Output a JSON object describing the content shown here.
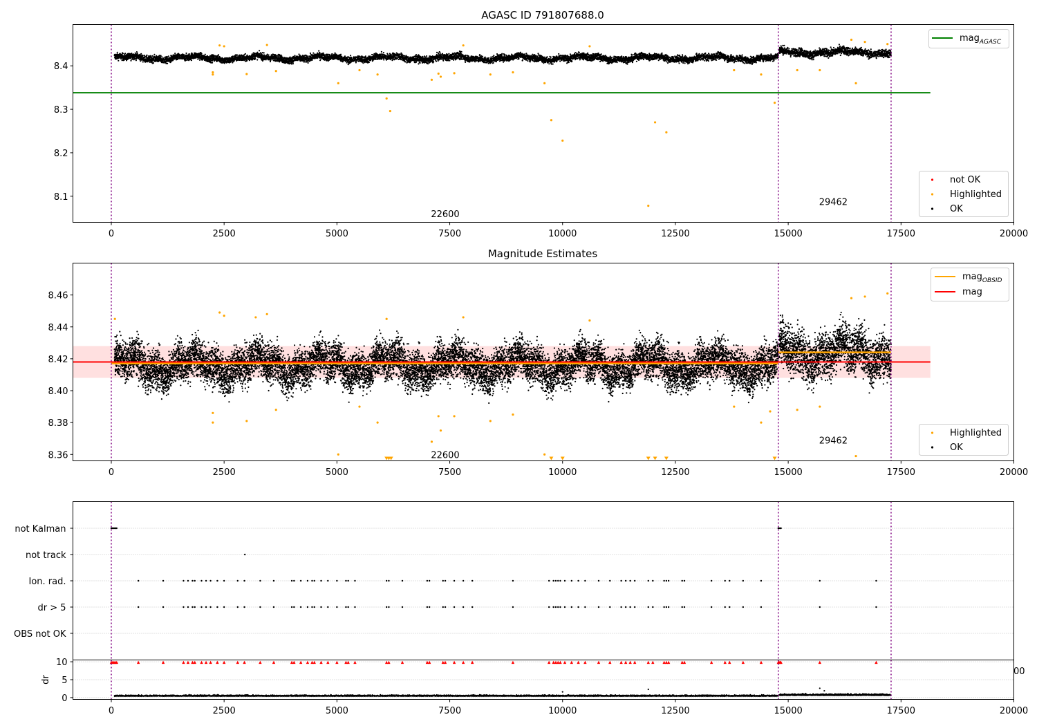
{
  "chart_data": [
    {
      "type": "scatter",
      "title": "AGASC ID 791807688.0",
      "xlim": [
        -850,
        20000
      ],
      "ylim": [
        8.04,
        8.495
      ],
      "x_ticks": [
        0,
        2500,
        5000,
        7500,
        10000,
        12500,
        15000,
        17500,
        20000
      ],
      "y_ticks": [
        8.1,
        8.2,
        8.3,
        8.4
      ],
      "vlines": [
        0,
        14780,
        17280
      ],
      "obsid_labels": [
        {
          "text": "22600",
          "x": 7400,
          "y": 8.06
        },
        {
          "text": "29462",
          "x": 16000,
          "y": 8.088
        }
      ],
      "mag_agasc": 8.338,
      "mag_agasc_range": [
        -850,
        18150
      ],
      "ok_segments": [
        {
          "x": [
            70,
            14780
          ],
          "center": 8.418,
          "spread": 0.011
        },
        {
          "x": [
            14800,
            17280
          ],
          "center": 8.431,
          "spread": 0.013
        }
      ],
      "highlighted_points": [
        [
          2250,
          8.385
        ],
        [
          2250,
          8.38
        ],
        [
          2400,
          8.447
        ],
        [
          2500,
          8.445
        ],
        [
          3000,
          8.381
        ],
        [
          3450,
          8.448
        ],
        [
          3650,
          8.388
        ],
        [
          5030,
          8.36
        ],
        [
          5500,
          8.39
        ],
        [
          5900,
          8.38
        ],
        [
          6100,
          8.325
        ],
        [
          6180,
          8.296
        ],
        [
          7100,
          8.368
        ],
        [
          7250,
          8.382
        ],
        [
          7300,
          8.375
        ],
        [
          7600,
          8.383
        ],
        [
          7800,
          8.447
        ],
        [
          8400,
          8.38
        ],
        [
          8900,
          8.385
        ],
        [
          9600,
          8.36
        ],
        [
          9750,
          8.275
        ],
        [
          10000,
          8.228
        ],
        [
          10600,
          8.445
        ],
        [
          11900,
          8.078
        ],
        [
          12050,
          8.27
        ],
        [
          12300,
          8.247
        ],
        [
          13800,
          8.39
        ],
        [
          14400,
          8.38
        ],
        [
          14700,
          8.315
        ],
        [
          15200,
          8.39
        ],
        [
          15700,
          8.39
        ],
        [
          16400,
          8.46
        ],
        [
          16500,
          8.36
        ],
        [
          16700,
          8.455
        ],
        [
          17200,
          8.45
        ]
      ],
      "legend_upper": [
        {
          "label": "mag",
          "sub": "AGASC",
          "color": "#008000"
        }
      ],
      "legend_lower": [
        {
          "label": "not OK",
          "color": "#ff0000"
        },
        {
          "label": "Highlighted",
          "color": "#ffa500"
        },
        {
          "label": "OK",
          "color": "#000000"
        }
      ]
    },
    {
      "type": "scatter",
      "title": "Magnitude Estimates",
      "xlim": [
        -850,
        20000
      ],
      "ylim": [
        8.356,
        8.48
      ],
      "x_ticks": [
        0,
        2500,
        5000,
        7500,
        10000,
        12500,
        15000,
        17500,
        20000
      ],
      "y_ticks": [
        8.36,
        8.38,
        8.4,
        8.42,
        8.44,
        8.46
      ],
      "vlines": [
        0,
        14780,
        17280
      ],
      "obsid_labels": [
        {
          "text": "22600",
          "x": 7400,
          "y": 8.36
        },
        {
          "text": "29462",
          "x": 16000,
          "y": 8.369
        }
      ],
      "mag": 8.418,
      "mag_band": [
        8.408,
        8.428
      ],
      "mag_range": [
        -850,
        18150
      ],
      "mag_obsid": [
        {
          "x": [
            0,
            14780
          ],
          "y": 8.417
        },
        {
          "x": [
            14780,
            17280
          ],
          "y": 8.424
        }
      ],
      "ok_segments": [
        {
          "x": [
            70,
            14780
          ],
          "center": 8.416,
          "spread": 0.011
        },
        {
          "x": [
            14800,
            17280
          ],
          "center": 8.424,
          "spread": 0.013
        }
      ],
      "highlighted_points": [
        [
          80,
          8.445
        ],
        [
          2250,
          8.386
        ],
        [
          2250,
          8.38
        ],
        [
          2400,
          8.449
        ],
        [
          2500,
          8.447
        ],
        [
          3000,
          8.381
        ],
        [
          3200,
          8.446
        ],
        [
          3450,
          8.448
        ],
        [
          3650,
          8.388
        ],
        [
          5030,
          8.36
        ],
        [
          5500,
          8.39
        ],
        [
          5900,
          8.38
        ],
        [
          6100,
          8.445
        ],
        [
          7100,
          8.368
        ],
        [
          7250,
          8.384
        ],
        [
          7300,
          8.375
        ],
        [
          7600,
          8.384
        ],
        [
          7800,
          8.446
        ],
        [
          8400,
          8.381
        ],
        [
          8900,
          8.385
        ],
        [
          9600,
          8.36
        ],
        [
          10600,
          8.444
        ],
        [
          13800,
          8.39
        ],
        [
          14400,
          8.38
        ],
        [
          14600,
          8.387
        ],
        [
          15200,
          8.388
        ],
        [
          15700,
          8.39
        ],
        [
          16400,
          8.458
        ],
        [
          16500,
          8.359
        ],
        [
          16700,
          8.459
        ],
        [
          17200,
          8.461
        ]
      ],
      "clipped_points": [
        6100,
        6150,
        6200,
        9750,
        10000,
        11900,
        12050,
        12300,
        14700
      ],
      "legend_upper": [
        {
          "label": "mag",
          "sub": "OBSID",
          "color": "#ffa500"
        },
        {
          "label": "mag",
          "sub": "",
          "color": "#ff0000"
        }
      ],
      "legend_lower": [
        {
          "label": "Highlighted",
          "color": "#ffa500"
        },
        {
          "label": "OK",
          "color": "#000000"
        }
      ]
    },
    {
      "type": "scatter",
      "xlim": [
        -850,
        20000
      ],
      "x_ticks": [
        0,
        2500,
        5000,
        7500,
        10000,
        12500,
        15000,
        17500,
        20000
      ],
      "vlines": [
        0,
        14780,
        17280
      ],
      "flag_categories": [
        "not Kalman",
        "not track",
        "Ion. rad.",
        "dr > 5",
        "OBS not OK"
      ],
      "flag_points": {
        "not Kalman": [
          0,
          20,
          40,
          60,
          80,
          100,
          120,
          14780,
          14800,
          14820,
          14840
        ],
        "not track": [
          2960
        ],
        "Ion. rad.": [
          600,
          1150,
          1600,
          1700,
          1800,
          1850,
          2000,
          2100,
          2200,
          2350,
          2500,
          2800,
          2950,
          3300,
          3600,
          4000,
          4050,
          4200,
          4350,
          4450,
          4500,
          4650,
          4800,
          5000,
          5200,
          5250,
          5400,
          6100,
          6150,
          6450,
          7000,
          7050,
          7350,
          7400,
          7600,
          7800,
          8000,
          8900,
          9700,
          9800,
          9850,
          9900,
          9950,
          10050,
          10200,
          10350,
          10500,
          10800,
          11050,
          11300,
          11400,
          11500,
          11600,
          11900,
          12000,
          12250,
          12300,
          12350,
          12650,
          12700,
          13300,
          13600,
          13700,
          14000,
          14400,
          15700,
          16950
        ],
        "dr > 5": [
          600,
          1150,
          1600,
          1700,
          1800,
          1850,
          2000,
          2100,
          2200,
          2350,
          2500,
          2800,
          2950,
          3300,
          3600,
          4000,
          4050,
          4200,
          4350,
          4450,
          4500,
          4650,
          4800,
          5000,
          5200,
          5250,
          5400,
          6100,
          6150,
          6450,
          7000,
          7050,
          7350,
          7400,
          7600,
          7800,
          8000,
          8900,
          9700,
          9800,
          9850,
          9900,
          9950,
          10050,
          10200,
          10350,
          10500,
          10800,
          11050,
          11300,
          11400,
          11500,
          11600,
          11900,
          12000,
          12250,
          12300,
          12350,
          12650,
          12700,
          13300,
          13600,
          13700,
          14000,
          14400,
          15700,
          16950
        ],
        "OBS not OK": []
      },
      "ylabel": "dr",
      "dr_ylim": [
        -0.5,
        10.5
      ],
      "dr_ticks": [
        0,
        5,
        10
      ],
      "dr_clipped": [
        0,
        30,
        60,
        90,
        120,
        600,
        1150,
        1600,
        1700,
        1800,
        1850,
        2000,
        2100,
        2200,
        2350,
        2500,
        2800,
        2950,
        3300,
        3600,
        4000,
        4050,
        4200,
        4350,
        4450,
        4500,
        4650,
        4800,
        5000,
        5200,
        5250,
        5400,
        6100,
        6150,
        6450,
        7000,
        7050,
        7350,
        7400,
        7600,
        7800,
        8000,
        8900,
        9700,
        9800,
        9850,
        9900,
        9950,
        10050,
        10200,
        10350,
        10500,
        10800,
        11050,
        11300,
        11400,
        11500,
        11600,
        11900,
        12000,
        12250,
        12300,
        12350,
        12650,
        12700,
        13300,
        13600,
        13700,
        14000,
        14400,
        14780,
        14800,
        14820,
        14840,
        15700,
        16950
      ],
      "dr_segments": [
        {
          "x": [
            70,
            14780
          ],
          "center": 0.45,
          "spread": 0.25
        },
        {
          "x": [
            14800,
            17280
          ],
          "center": 0.7,
          "spread": 0.35
        }
      ],
      "dr_outliers": [
        [
          10000,
          1.6
        ],
        [
          11900,
          2.3
        ],
        [
          15700,
          2.6
        ],
        [
          15800,
          1.9
        ]
      ],
      "stray_tick_label": "00"
    }
  ]
}
